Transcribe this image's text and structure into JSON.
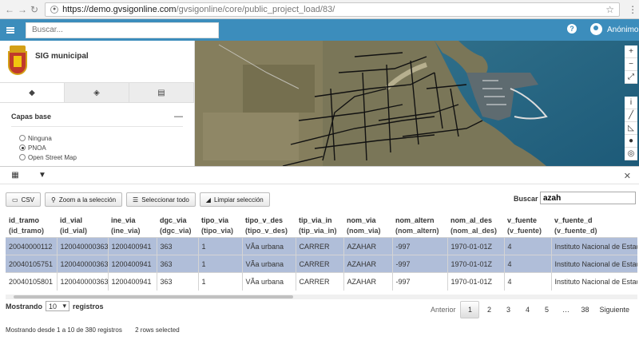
{
  "browser": {
    "url_host": "https://demo.gvsigonline.com",
    "url_path": "/gvsigonline/core/public_project_load/83/"
  },
  "header": {
    "search_placeholder": "Buscar...",
    "user": "Anónimo"
  },
  "sidebar": {
    "title": "SIG municipal",
    "section_title": "Capas base",
    "base_layers": [
      {
        "label": "Ninguna",
        "checked": false
      },
      {
        "label": "PNOA",
        "checked": true
      },
      {
        "label": "Open Street Map",
        "checked": false
      }
    ]
  },
  "toolbar": {
    "csv": "CSV",
    "zoom": "Zoom a la selección",
    "select_all": "Seleccionar todo",
    "clear": "Limpiar selección",
    "search_label": "Buscar :",
    "search_value": "azah"
  },
  "table": {
    "columns": [
      {
        "name": "id_tramo",
        "sub": "(id_tramo)"
      },
      {
        "name": "id_vial",
        "sub": "(id_vial)"
      },
      {
        "name": "ine_via",
        "sub": "(ine_via)"
      },
      {
        "name": "dgc_via",
        "sub": "(dgc_via)"
      },
      {
        "name": "tipo_via",
        "sub": "(tipo_via)"
      },
      {
        "name": "tipo_v_des",
        "sub": "(tipo_v_des)"
      },
      {
        "name": "tip_via_in",
        "sub": "(tip_via_in)"
      },
      {
        "name": "nom_via",
        "sub": "(nom_via)"
      },
      {
        "name": "nom_altern",
        "sub": "(nom_altern)"
      },
      {
        "name": "nom_al_des",
        "sub": "(nom_al_des)"
      },
      {
        "name": "v_fuente",
        "sub": "(v_fuente)"
      },
      {
        "name": "v_fuente_d",
        "sub": "(v_fuente_d)"
      }
    ],
    "rows": [
      {
        "selected": true,
        "cells": [
          "20040000112",
          "120040000363",
          "1200400941",
          "363",
          "1",
          "VÃa urbana",
          "CARRER",
          "AZAHAR",
          "-997",
          "1970-01-01Z",
          "4",
          "Instituto Nacional de EstadÃst"
        ]
      },
      {
        "selected": true,
        "cells": [
          "20040105751",
          "120040000363",
          "1200400941",
          "363",
          "1",
          "VÃa urbana",
          "CARRER",
          "AZAHAR",
          "-997",
          "1970-01-01Z",
          "4",
          "Instituto Nacional de EstadÃst"
        ]
      },
      {
        "selected": false,
        "cells": [
          "20040105801",
          "120040000363",
          "1200400941",
          "363",
          "1",
          "VÃa urbana",
          "CARRER",
          "AZAHAR",
          "-997",
          "1970-01-01Z",
          "4",
          "Instituto Nacional de EstadÃst"
        ]
      }
    ]
  },
  "footer": {
    "showing_prefix": "Mostrando",
    "length_value": "10",
    "showing_suffix": "registros",
    "info": "Mostrando desde 1 a 10 de 380 registros",
    "selected_info": "2 rows selected",
    "pagination": {
      "prev": "Anterior",
      "pages": [
        "1",
        "2",
        "3",
        "4",
        "5",
        "…",
        "38"
      ],
      "current": "1",
      "next": "Siguiente"
    }
  },
  "colors": {
    "header_blue": "#3c8dbc",
    "selected_row": "#b0bed9"
  }
}
